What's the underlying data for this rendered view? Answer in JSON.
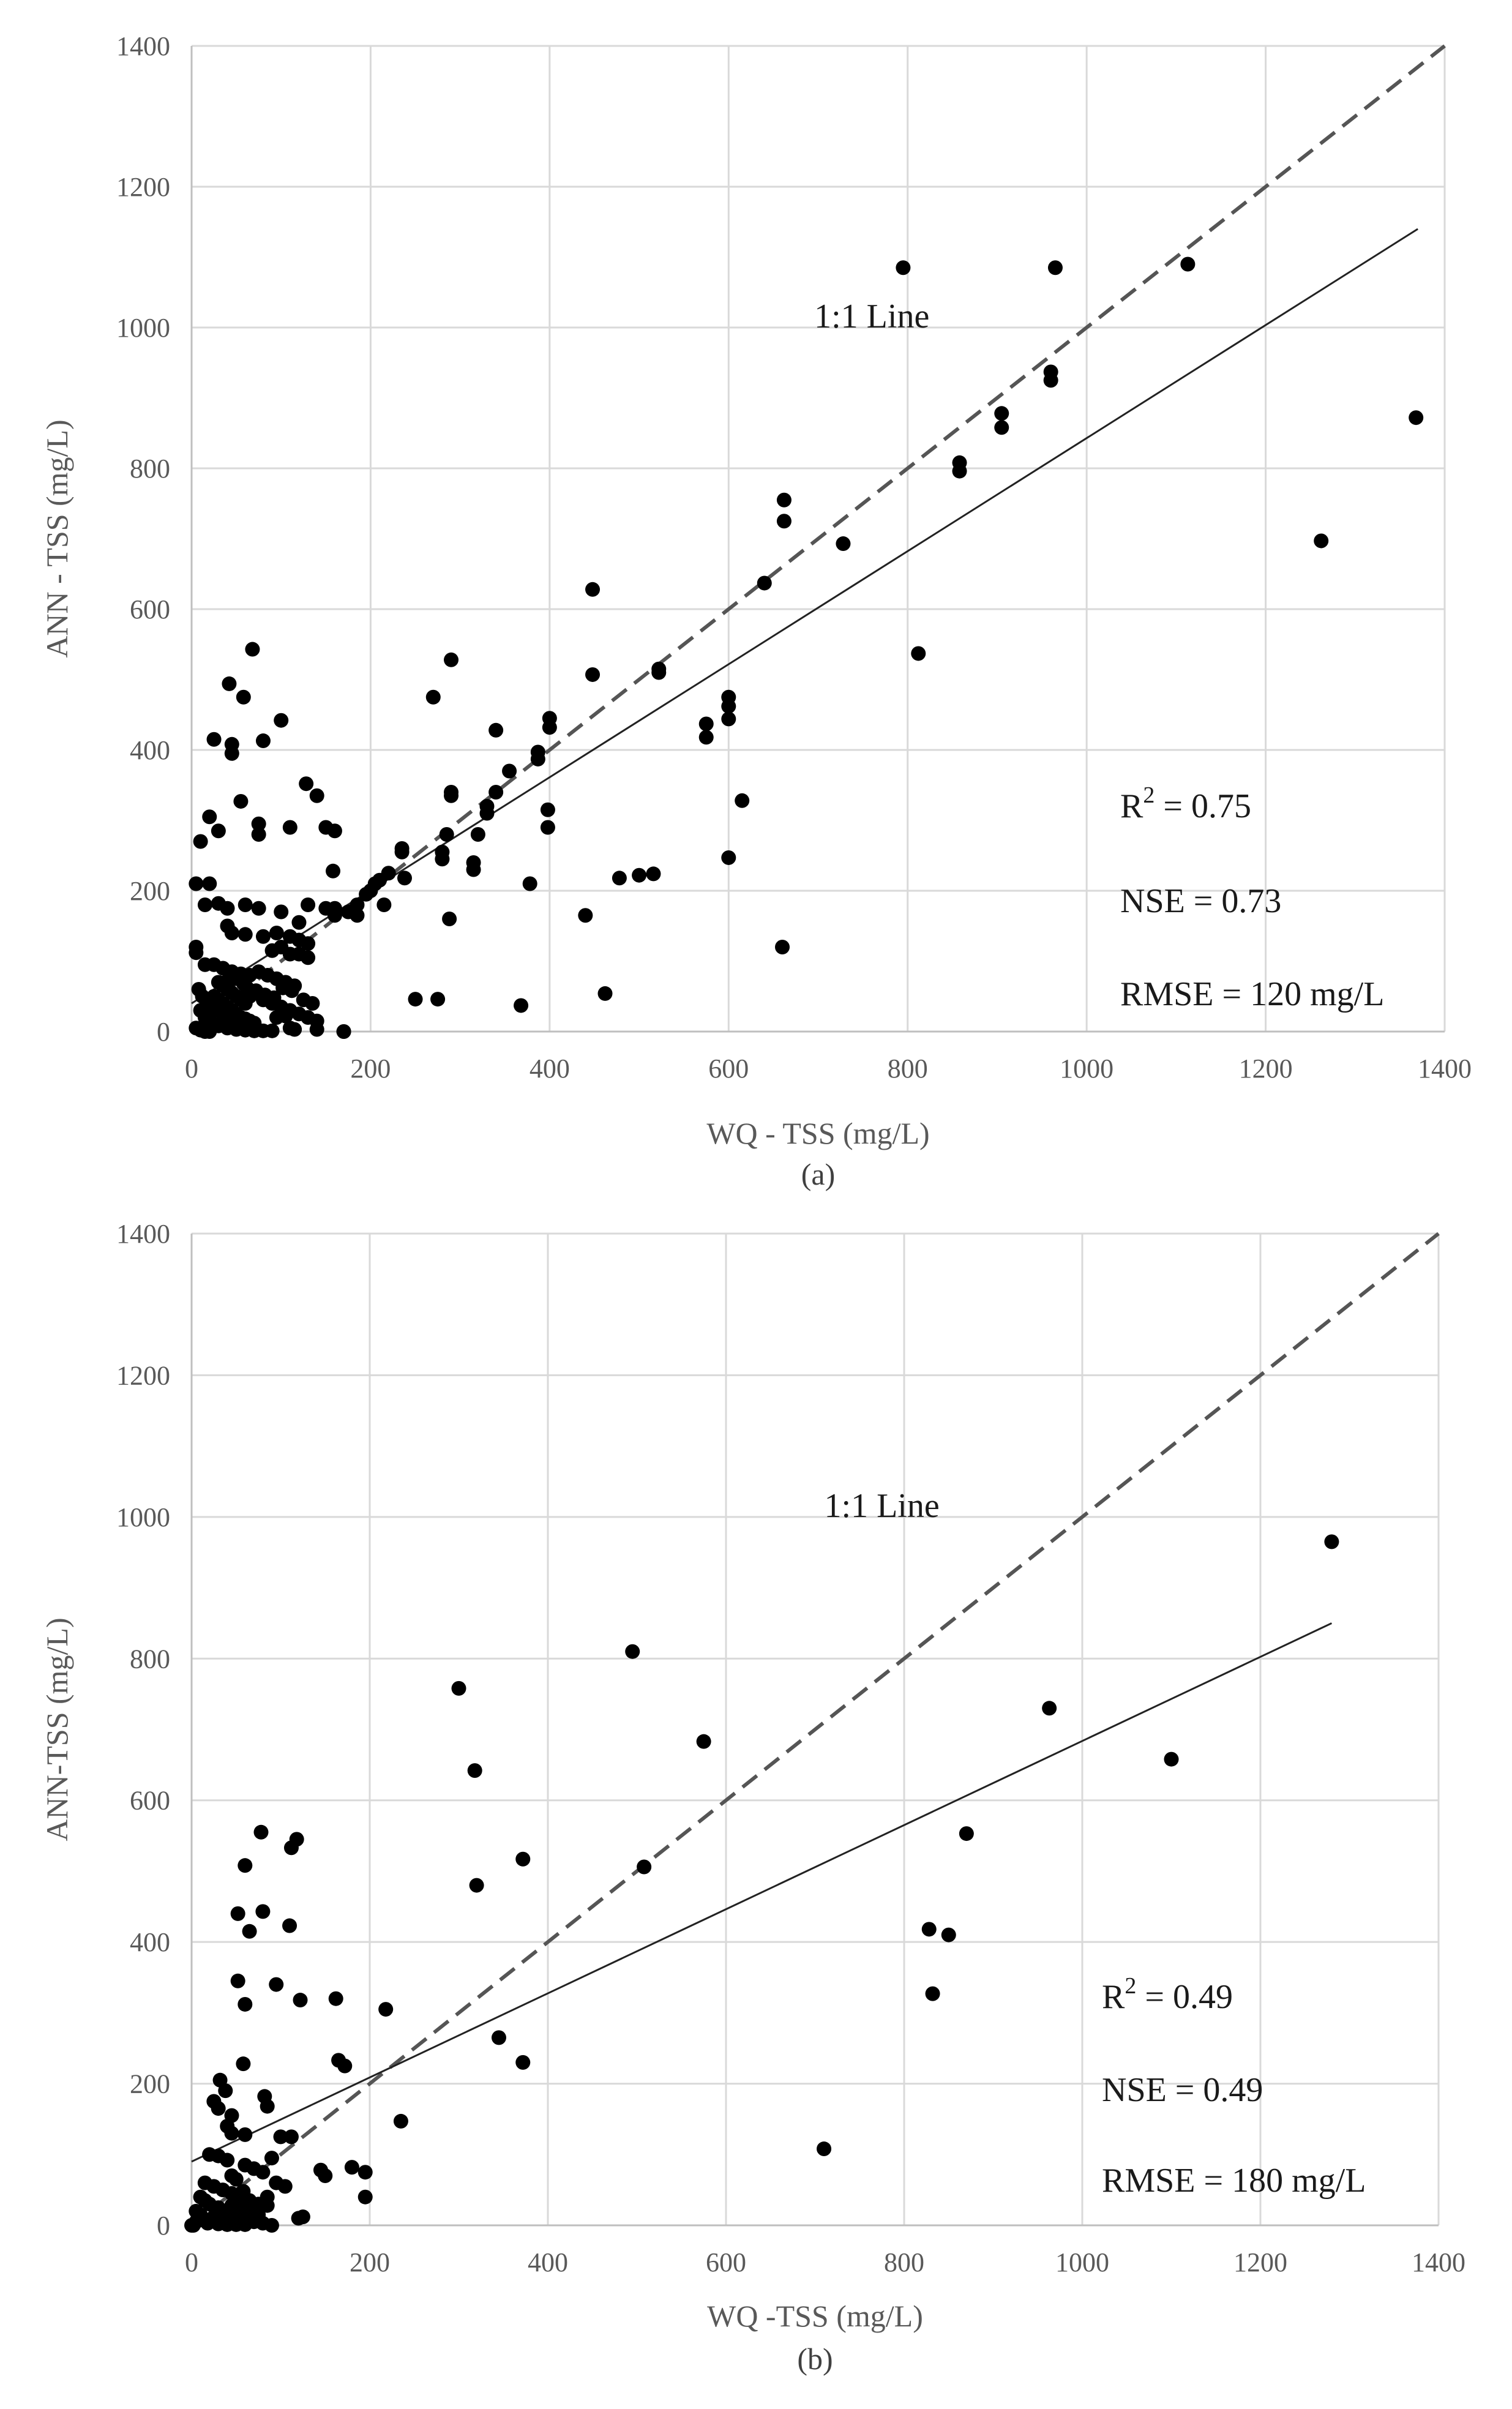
{
  "chart_data": [
    {
      "id": "a",
      "type": "scatter",
      "caption": "(a)",
      "xlabel": "WQ - TSS (mg/L)",
      "ylabel": "ANN - TSS (mg/L)",
      "xlim": [
        0,
        1400
      ],
      "ylim": [
        0,
        1400
      ],
      "xticks": [
        0,
        200,
        400,
        600,
        800,
        1000,
        1200,
        1400
      ],
      "yticks": [
        0,
        200,
        400,
        600,
        800,
        1000,
        1200,
        1400
      ],
      "grid": true,
      "one_to_one_label": "1:1 Line",
      "one_to_one_label_at": [
        760,
        1000
      ],
      "fit_line": {
        "x": [
          0,
          1370
        ],
        "y": [
          40,
          1140
        ]
      },
      "stats": {
        "r2_prefix": "R",
        "r2_sup": "2",
        "r2_value": " = 0.75",
        "nse": "NSE = 0.73",
        "rmse": "RMSE = 120 mg/L"
      },
      "points": [
        [
          795,
          1085
        ],
        [
          965,
          1085
        ],
        [
          1113,
          1090
        ],
        [
          960,
          937
        ],
        [
          960,
          925
        ],
        [
          905,
          878
        ],
        [
          905,
          858
        ],
        [
          858,
          808
        ],
        [
          858,
          796
        ],
        [
          1368,
          872
        ],
        [
          1262,
          697
        ],
        [
          728,
          693
        ],
        [
          662,
          755
        ],
        [
          662,
          725
        ],
        [
          640,
          637
        ],
        [
          448,
          628
        ],
        [
          812,
          537
        ],
        [
          522,
          515
        ],
        [
          522,
          510
        ],
        [
          448,
          507
        ],
        [
          600,
          475
        ],
        [
          600,
          462
        ],
        [
          600,
          444
        ],
        [
          575,
          437
        ],
        [
          575,
          418
        ],
        [
          400,
          445
        ],
        [
          400,
          432
        ],
        [
          387,
          397
        ],
        [
          387,
          387
        ],
        [
          355,
          370
        ],
        [
          340,
          428
        ],
        [
          290,
          528
        ],
        [
          270,
          475
        ],
        [
          290,
          340
        ],
        [
          290,
          335
        ],
        [
          340,
          340
        ],
        [
          330,
          320
        ],
        [
          330,
          310
        ],
        [
          320,
          280
        ],
        [
          398,
          315
        ],
        [
          398,
          290
        ],
        [
          315,
          240
        ],
        [
          315,
          230
        ],
        [
          285,
          280
        ],
        [
          280,
          255
        ],
        [
          280,
          245
        ],
        [
          235,
          260
        ],
        [
          235,
          255
        ],
        [
          220,
          225
        ],
        [
          210,
          215
        ],
        [
          205,
          210
        ],
        [
          200,
          200
        ],
        [
          195,
          195
        ],
        [
          185,
          180
        ],
        [
          185,
          165
        ],
        [
          175,
          170
        ],
        [
          160,
          175
        ],
        [
          160,
          165
        ],
        [
          150,
          175
        ],
        [
          130,
          180
        ],
        [
          120,
          155
        ],
        [
          215,
          180
        ],
        [
          238,
          218
        ],
        [
          250,
          46
        ],
        [
          275,
          46
        ],
        [
          288,
          160
        ],
        [
          368,
          37
        ],
        [
          378,
          210
        ],
        [
          440,
          165
        ],
        [
          462,
          54
        ],
        [
          478,
          218
        ],
        [
          500,
          222
        ],
        [
          516,
          224
        ],
        [
          600,
          247
        ],
        [
          615,
          328
        ],
        [
          660,
          120
        ],
        [
          68,
          543
        ],
        [
          42,
          494
        ],
        [
          58,
          475
        ],
        [
          45,
          408
        ],
        [
          45,
          395
        ],
        [
          25,
          415
        ],
        [
          100,
          442
        ],
        [
          80,
          413
        ],
        [
          20,
          305
        ],
        [
          10,
          270
        ],
        [
          30,
          285
        ],
        [
          55,
          327
        ],
        [
          75,
          295
        ],
        [
          75,
          280
        ],
        [
          110,
          290
        ],
        [
          140,
          335
        ],
        [
          128,
          352
        ],
        [
          150,
          290
        ],
        [
          160,
          285
        ],
        [
          158,
          228
        ],
        [
          20,
          210
        ],
        [
          5,
          210
        ],
        [
          15,
          180
        ],
        [
          30,
          182
        ],
        [
          40,
          175
        ],
        [
          60,
          180
        ],
        [
          75,
          175
        ],
        [
          100,
          170
        ],
        [
          40,
          150
        ],
        [
          45,
          140
        ],
        [
          60,
          138
        ],
        [
          80,
          135
        ],
        [
          95,
          140
        ],
        [
          110,
          135
        ],
        [
          120,
          130
        ],
        [
          130,
          125
        ],
        [
          100,
          120
        ],
        [
          90,
          115
        ],
        [
          110,
          110
        ],
        [
          120,
          110
        ],
        [
          130,
          105
        ],
        [
          5,
          120
        ],
        [
          5,
          112
        ],
        [
          15,
          95
        ],
        [
          25,
          95
        ],
        [
          35,
          90
        ],
        [
          45,
          85
        ],
        [
          55,
          82
        ],
        [
          65,
          80
        ],
        [
          75,
          85
        ],
        [
          85,
          80
        ],
        [
          95,
          75
        ],
        [
          105,
          70
        ],
        [
          115,
          65
        ],
        [
          30,
          70
        ],
        [
          35,
          65
        ],
        [
          40,
          60
        ],
        [
          45,
          55
        ],
        [
          50,
          50
        ],
        [
          55,
          45
        ],
        [
          60,
          40
        ],
        [
          65,
          50
        ],
        [
          70,
          55
        ],
        [
          80,
          45
        ],
        [
          90,
          40
        ],
        [
          100,
          35
        ],
        [
          110,
          30
        ],
        [
          120,
          25
        ],
        [
          130,
          20
        ],
        [
          140,
          15
        ],
        [
          10,
          30
        ],
        [
          15,
          20
        ],
        [
          20,
          15
        ],
        [
          25,
          10
        ],
        [
          30,
          8
        ],
        [
          40,
          5
        ],
        [
          50,
          3
        ],
        [
          60,
          2
        ],
        [
          70,
          1
        ],
        [
          80,
          1
        ],
        [
          90,
          1
        ],
        [
          20,
          40
        ],
        [
          25,
          50
        ],
        [
          30,
          45
        ],
        [
          35,
          40
        ],
        [
          40,
          35
        ],
        [
          45,
          30
        ],
        [
          50,
          25
        ],
        [
          55,
          20
        ],
        [
          60,
          18
        ],
        [
          65,
          15
        ],
        [
          70,
          12
        ],
        [
          8,
          60
        ],
        [
          12,
          50
        ],
        [
          18,
          45
        ],
        [
          22,
          35
        ],
        [
          28,
          30
        ],
        [
          35,
          25
        ],
        [
          42,
          20
        ],
        [
          50,
          15
        ],
        [
          58,
          10
        ],
        [
          65,
          8
        ],
        [
          5,
          5
        ],
        [
          10,
          2
        ],
        [
          15,
          0
        ],
        [
          20,
          0
        ],
        [
          110,
          5
        ],
        [
          115,
          3
        ],
        [
          140,
          3
        ],
        [
          170,
          0
        ],
        [
          170,
          0
        ],
        [
          38,
          70
        ],
        [
          48,
          75
        ],
        [
          58,
          68
        ],
        [
          62,
          62
        ],
        [
          72,
          58
        ],
        [
          82,
          52
        ],
        [
          92,
          48
        ],
        [
          102,
          62
        ],
        [
          112,
          58
        ],
        [
          125,
          45
        ],
        [
          135,
          40
        ],
        [
          95,
          20
        ],
        [
          105,
          22
        ]
      ]
    },
    {
      "id": "b",
      "type": "scatter",
      "caption": "(b)",
      "xlabel": "WQ -TSS (mg/L)",
      "ylabel": "ANN-TSS (mg/L)",
      "xlim": [
        0,
        1400
      ],
      "ylim": [
        0,
        1400
      ],
      "xticks": [
        0,
        200,
        400,
        600,
        800,
        1000,
        1200,
        1400
      ],
      "yticks": [
        0,
        200,
        400,
        600,
        800,
        1000,
        1200,
        1400
      ],
      "grid": true,
      "one_to_one_label": "1:1 Line",
      "one_to_one_label_at": [
        775,
        1000
      ],
      "fit_line": {
        "x": [
          0,
          1280
        ],
        "y": [
          90,
          850
        ]
      },
      "stats": {
        "r2_prefix": "R",
        "r2_sup": "2",
        "r2_value": " = 0.49",
        "nse": "NSE = 0.49",
        "rmse": "RMSE = 180 mg/L"
      },
      "points": [
        [
          1280,
          965
        ],
        [
          1100,
          658
        ],
        [
          963,
          730
        ],
        [
          495,
          810
        ],
        [
          575,
          683
        ],
        [
          300,
          758
        ],
        [
          318,
          642
        ],
        [
          320,
          480
        ],
        [
          372,
          517
        ],
        [
          508,
          506
        ],
        [
          870,
          553
        ],
        [
          828,
          418
        ],
        [
          850,
          410
        ],
        [
          832,
          327
        ],
        [
          345,
          265
        ],
        [
          372,
          230
        ],
        [
          710,
          108
        ],
        [
          218,
          305
        ],
        [
          235,
          147
        ],
        [
          78,
          555
        ],
        [
          118,
          545
        ],
        [
          112,
          533
        ],
        [
          60,
          508
        ],
        [
          80,
          443
        ],
        [
          52,
          440
        ],
        [
          110,
          423
        ],
        [
          65,
          415
        ],
        [
          52,
          345
        ],
        [
          95,
          340
        ],
        [
          60,
          312
        ],
        [
          122,
          318
        ],
        [
          162,
          320
        ],
        [
          165,
          233
        ],
        [
          172,
          225
        ],
        [
          58,
          228
        ],
        [
          82,
          182
        ],
        [
          32,
          205
        ],
        [
          38,
          190
        ],
        [
          25,
          175
        ],
        [
          30,
          165
        ],
        [
          85,
          168
        ],
        [
          45,
          155
        ],
        [
          40,
          140
        ],
        [
          45,
          130
        ],
        [
          60,
          128
        ],
        [
          100,
          125
        ],
        [
          112,
          125
        ],
        [
          20,
          100
        ],
        [
          30,
          98
        ],
        [
          40,
          92
        ],
        [
          60,
          85
        ],
        [
          70,
          80
        ],
        [
          80,
          75
        ],
        [
          90,
          95
        ],
        [
          95,
          60
        ],
        [
          105,
          55
        ],
        [
          180,
          82
        ],
        [
          195,
          75
        ],
        [
          145,
          78
        ],
        [
          150,
          70
        ],
        [
          15,
          60
        ],
        [
          25,
          55
        ],
        [
          35,
          50
        ],
        [
          45,
          45
        ],
        [
          55,
          40
        ],
        [
          65,
          35
        ],
        [
          75,
          30
        ],
        [
          85,
          28
        ],
        [
          20,
          30
        ],
        [
          30,
          25
        ],
        [
          40,
          20
        ],
        [
          50,
          15
        ],
        [
          60,
          10
        ],
        [
          70,
          5
        ],
        [
          80,
          3
        ],
        [
          10,
          40
        ],
        [
          15,
          35
        ],
        [
          10,
          15
        ],
        [
          5,
          5
        ],
        [
          20,
          5
        ],
        [
          30,
          2
        ],
        [
          40,
          1
        ],
        [
          50,
          1
        ],
        [
          60,
          1
        ],
        [
          90,
          0
        ],
        [
          120,
          10
        ],
        [
          125,
          12
        ],
        [
          195,
          40
        ],
        [
          5,
          20
        ],
        [
          8,
          10
        ],
        [
          12,
          8
        ],
        [
          18,
          3
        ],
        [
          25,
          12
        ],
        [
          35,
          8
        ],
        [
          45,
          28
        ],
        [
          55,
          22
        ],
        [
          65,
          18
        ],
        [
          75,
          15
        ],
        [
          85,
          40
        ],
        [
          45,
          70
        ],
        [
          50,
          65
        ],
        [
          58,
          48
        ],
        [
          0,
          0
        ],
        [
          2,
          0
        ]
      ]
    }
  ]
}
